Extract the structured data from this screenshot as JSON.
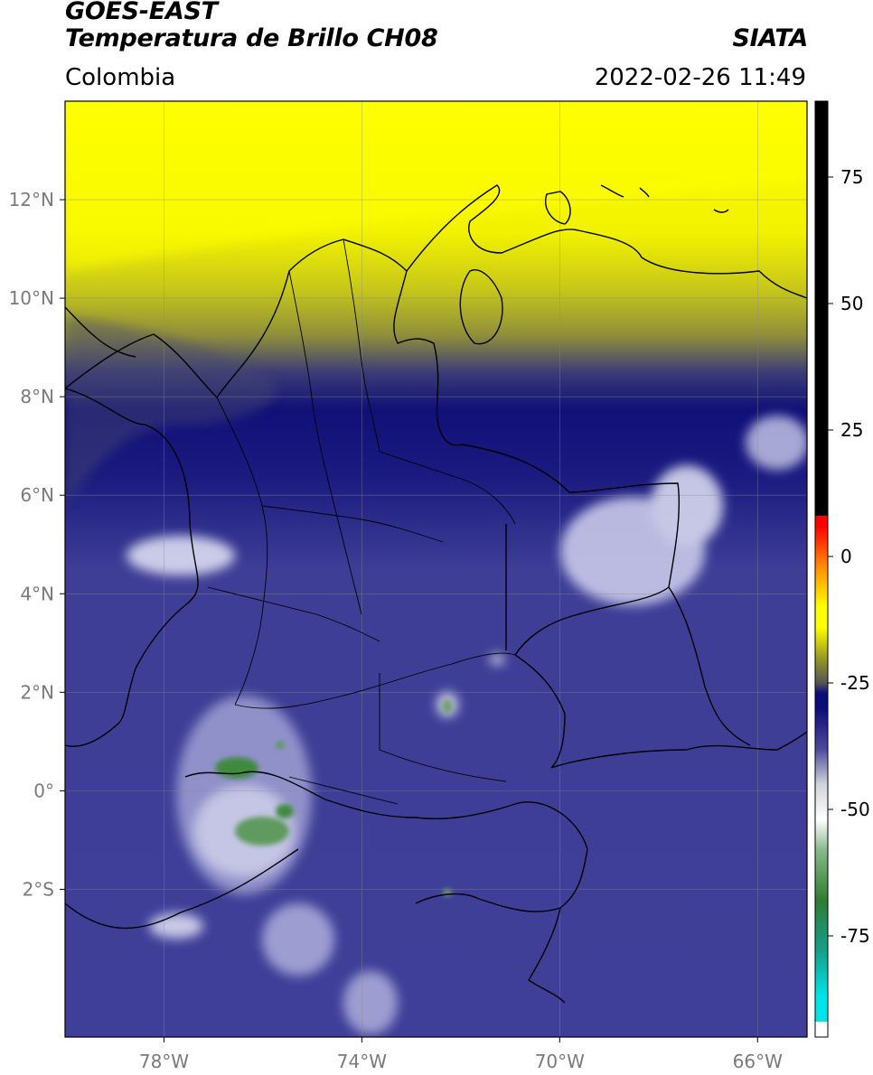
{
  "header": {
    "satellite": "GOES-EAST",
    "product": "Temperatura de Brillo CH08",
    "agency": "SIATA",
    "region": "Colombia",
    "timestamp": "2022-02-26 11:49"
  },
  "map": {
    "lon_range": [
      -80,
      -65
    ],
    "lat_range": [
      -5,
      14
    ],
    "x_ticks": [
      {
        "value": -78,
        "label": "78°W"
      },
      {
        "value": -74,
        "label": "74°W"
      },
      {
        "value": -70,
        "label": "70°W"
      },
      {
        "value": -66,
        "label": "66°W"
      }
    ],
    "y_ticks": [
      {
        "value": 12,
        "label": "12°N"
      },
      {
        "value": 10,
        "label": "10°N"
      },
      {
        "value": 8,
        "label": "8°N"
      },
      {
        "value": 6,
        "label": "6°N"
      },
      {
        "value": 4,
        "label": "4°N"
      },
      {
        "value": 2,
        "label": "2°N"
      },
      {
        "value": 0,
        "label": "0°"
      },
      {
        "value": -2,
        "label": "2°S"
      }
    ],
    "grid": true
  },
  "colorbar": {
    "range": [
      -95,
      90
    ],
    "ticks": [
      {
        "value": 75,
        "label": "75"
      },
      {
        "value": 50,
        "label": "50"
      },
      {
        "value": 25,
        "label": "25"
      },
      {
        "value": 0,
        "label": "0"
      },
      {
        "value": -25,
        "label": "-25"
      },
      {
        "value": -50,
        "label": "-50"
      },
      {
        "value": -75,
        "label": "-75"
      }
    ],
    "colors": {
      "white": "#ffffff",
      "cyan": "#00e5e5",
      "teal": "#14a08c",
      "green": "#2e7d32",
      "light_gray": "#cfd3da",
      "navy": "#0d0d7a",
      "slate": "#4a4a9a",
      "olive": "#9a9a20",
      "yellow": "#ffff00",
      "orange": "#ff8c00",
      "red": "#ff0000",
      "black": "#000000"
    }
  }
}
